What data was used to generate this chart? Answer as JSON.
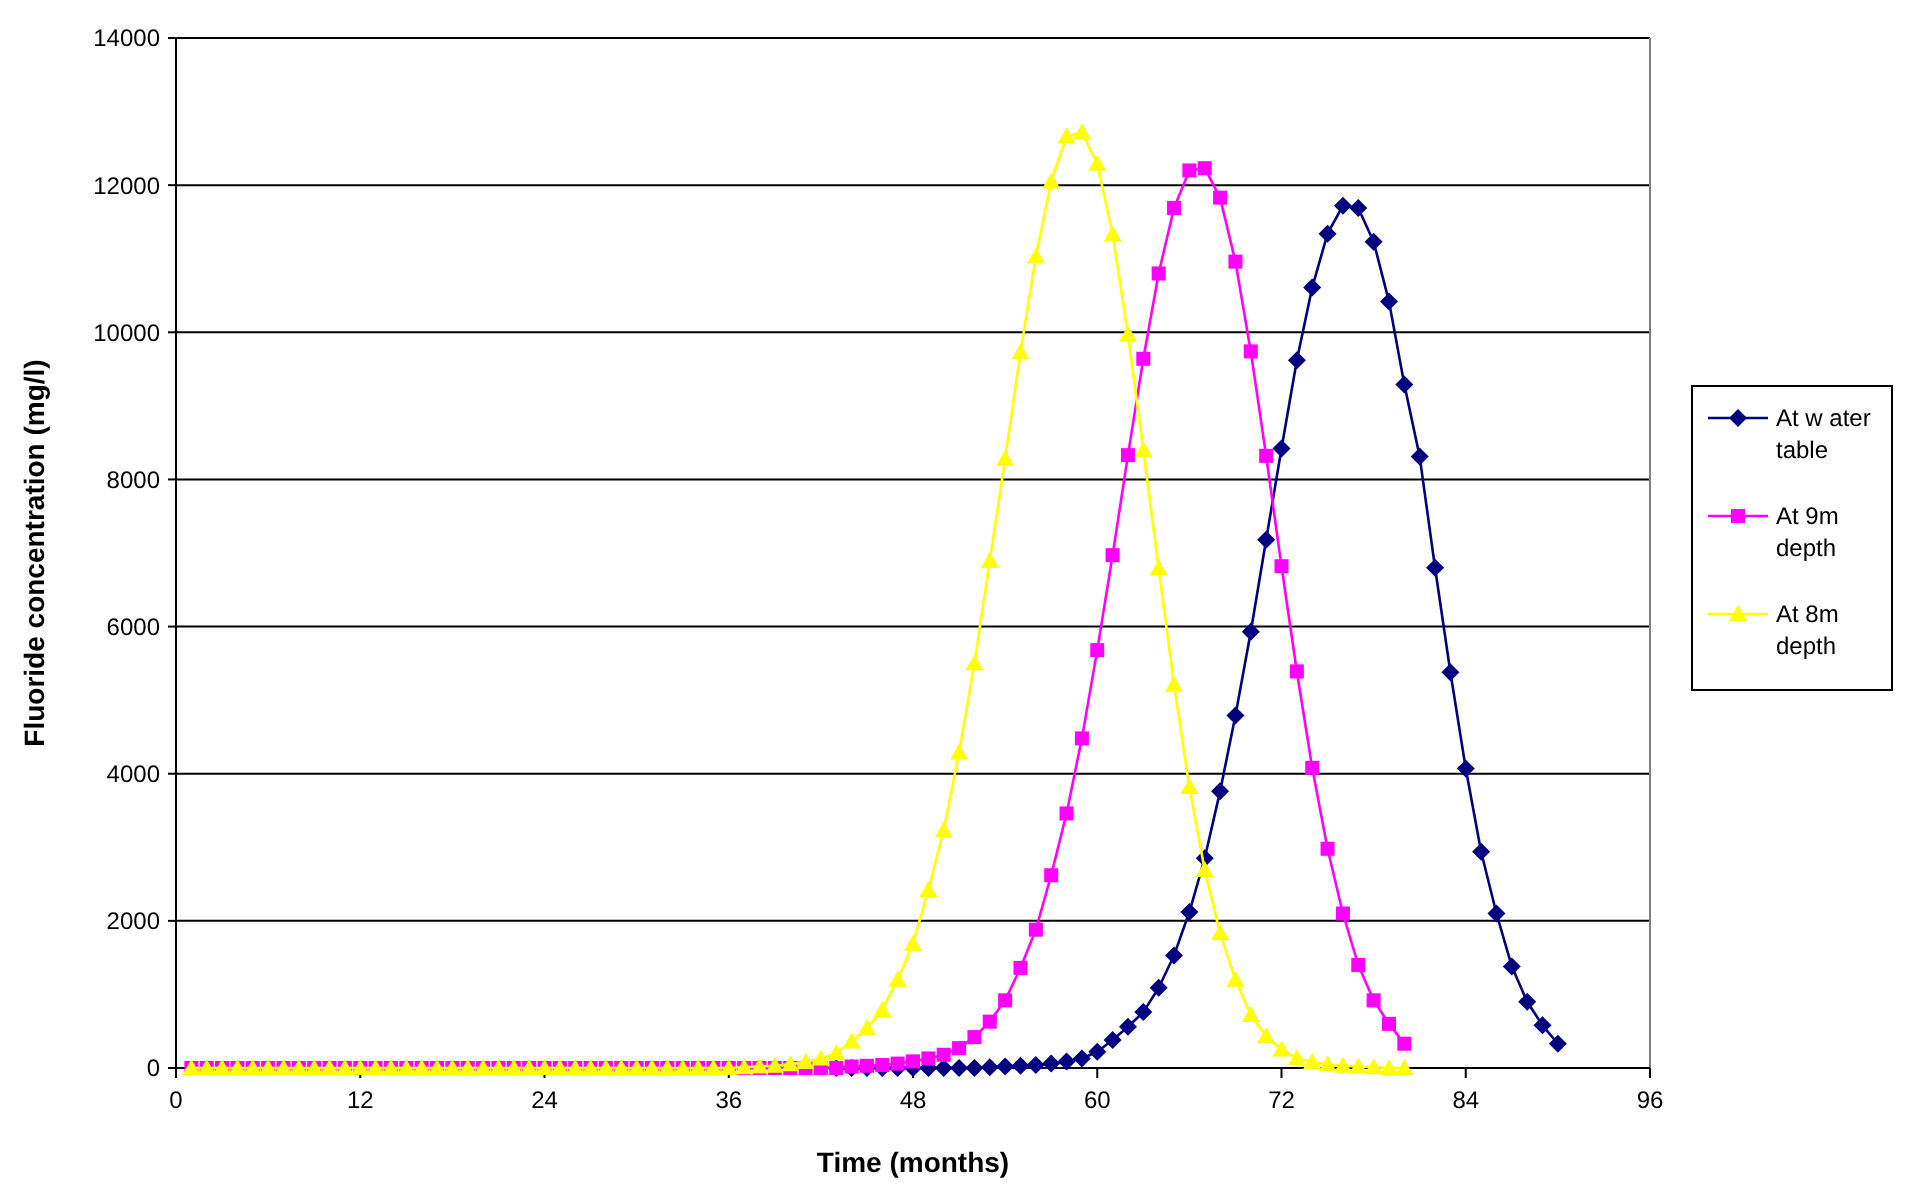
{
  "chart_data": {
    "type": "line",
    "xlabel": "Time (months)",
    "ylabel": "Fluoride concentration (mg/l)",
    "x": [
      1,
      2,
      3,
      4,
      5,
      6,
      7,
      8,
      9,
      10,
      11,
      12,
      13,
      14,
      15,
      16,
      17,
      18,
      19,
      20,
      21,
      22,
      23,
      24,
      25,
      26,
      27,
      28,
      29,
      30,
      31,
      32,
      33,
      34,
      35,
      36,
      37,
      38,
      39,
      40,
      41,
      42,
      43,
      44,
      45,
      46,
      47,
      48,
      49,
      50,
      51,
      52,
      53,
      54,
      55,
      56,
      57,
      58,
      59,
      60,
      61,
      62,
      63,
      64,
      65,
      66,
      67,
      68,
      69,
      70,
      71,
      72,
      73,
      74,
      75,
      76,
      77,
      78,
      79,
      80,
      81,
      82,
      83,
      84,
      85,
      86,
      87,
      88,
      89,
      90
    ],
    "series": [
      {
        "name": "At w ater table",
        "color": "#000080",
        "marker": "diamond",
        "values": [
          null,
          null,
          null,
          null,
          null,
          null,
          null,
          null,
          null,
          null,
          null,
          null,
          null,
          null,
          null,
          null,
          null,
          null,
          null,
          null,
          null,
          null,
          null,
          null,
          null,
          null,
          null,
          null,
          null,
          null,
          null,
          null,
          null,
          null,
          null,
          null,
          null,
          null,
          null,
          null,
          null,
          null,
          0,
          0,
          0,
          0,
          0,
          0,
          0,
          0,
          0,
          0,
          10,
          20,
          30,
          40,
          60,
          90,
          130,
          220,
          380,
          560,
          760,
          1090,
          1530,
          2120,
          2850,
          3760,
          4790,
          5930,
          7180,
          8420,
          9620,
          10610,
          11340,
          11720,
          11690,
          11230,
          10420,
          9290,
          8310,
          6800,
          5380,
          4070,
          2940,
          2100,
          1380,
          900,
          580,
          330
        ]
      },
      {
        "name": "At 9m depth",
        "color": "#ff00ff",
        "marker": "square",
        "values": [
          0,
          0,
          0,
          0,
          0,
          0,
          0,
          0,
          0,
          0,
          0,
          0,
          0,
          0,
          0,
          0,
          0,
          0,
          0,
          0,
          0,
          0,
          0,
          0,
          0,
          0,
          0,
          0,
          0,
          0,
          0,
          0,
          0,
          0,
          0,
          0,
          0,
          0,
          0,
          0,
          0,
          0,
          0,
          20,
          30,
          40,
          60,
          90,
          130,
          180,
          270,
          420,
          630,
          920,
          1360,
          1880,
          2620,
          3460,
          4480,
          5680,
          6970,
          8330,
          9640,
          10800,
          11690,
          12200,
          12230,
          11830,
          10960,
          9740,
          8320,
          6820,
          5390,
          4080,
          2980,
          2100,
          1400,
          920,
          600,
          330,
          null,
          null,
          null,
          null,
          null,
          null,
          null,
          null,
          null,
          null
        ]
      },
      {
        "name": "At 8m depth",
        "color": "#ffff00",
        "marker": "triangle",
        "values": [
          0,
          0,
          0,
          0,
          0,
          0,
          0,
          0,
          0,
          0,
          0,
          0,
          0,
          0,
          0,
          0,
          0,
          0,
          0,
          0,
          0,
          0,
          0,
          0,
          0,
          0,
          0,
          0,
          0,
          0,
          0,
          0,
          0,
          0,
          0,
          0,
          10,
          20,
          30,
          50,
          80,
          130,
          200,
          360,
          540,
          790,
          1200,
          1690,
          2420,
          3230,
          4290,
          5500,
          6890,
          8280,
          9730,
          11030,
          12050,
          12660,
          12720,
          12290,
          11330,
          9970,
          8400,
          6790,
          5210,
          3820,
          2690,
          1830,
          1200,
          720,
          430,
          250,
          130,
          80,
          50,
          30,
          20,
          10,
          0,
          0,
          null,
          null,
          null,
          null,
          null,
          null,
          null,
          null,
          null,
          null
        ]
      }
    ],
    "xlim": [
      0,
      96
    ],
    "xticks": [
      0,
      12,
      24,
      36,
      48,
      60,
      72,
      84,
      96
    ],
    "ylim": [
      0,
      14000
    ],
    "yticks": [
      0,
      2000,
      4000,
      6000,
      8000,
      10000,
      12000,
      14000
    ],
    "grid": "y",
    "legend": "right",
    "line_style": "solid"
  }
}
